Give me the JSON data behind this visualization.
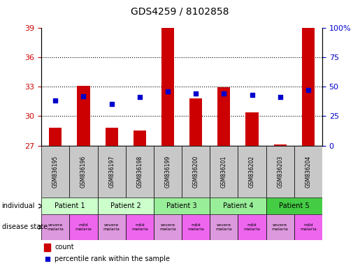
{
  "title": "GDS4259 / 8102858",
  "samples": [
    "GSM836195",
    "GSM836196",
    "GSM836197",
    "GSM836198",
    "GSM836199",
    "GSM836200",
    "GSM836201",
    "GSM836202",
    "GSM836203",
    "GSM836204"
  ],
  "count_values": [
    28.8,
    33.1,
    28.8,
    28.5,
    39.0,
    31.8,
    32.9,
    30.4,
    27.1,
    39.0
  ],
  "percentile_values": [
    38,
    42,
    35,
    41,
    46,
    44,
    44,
    43,
    41,
    47
  ],
  "ylim_left": [
    27,
    39
  ],
  "ylim_right": [
    0,
    100
  ],
  "yticks_left": [
    27,
    30,
    33,
    36,
    39
  ],
  "yticks_right": [
    0,
    25,
    50,
    75,
    100
  ],
  "bar_color": "#cc0000",
  "dot_color": "#0000cc",
  "bar_bottom": 27,
  "patients": [
    {
      "label": "Patient 1",
      "cols": [
        0,
        1
      ],
      "color": "#ccffcc"
    },
    {
      "label": "Patient 2",
      "cols": [
        2,
        3
      ],
      "color": "#ccffcc"
    },
    {
      "label": "Patient 3",
      "cols": [
        4,
        5
      ],
      "color": "#99ee99"
    },
    {
      "label": "Patient 4",
      "cols": [
        6,
        7
      ],
      "color": "#99ee99"
    },
    {
      "label": "Patient 5",
      "cols": [
        8,
        9
      ],
      "color": "#44cc44"
    }
  ],
  "disease_states": [
    {
      "label": "severe\nmalaria",
      "col": 0,
      "color": "#dd99dd"
    },
    {
      "label": "mild\nmalaria",
      "col": 1,
      "color": "#ee66ee"
    },
    {
      "label": "severe\nmalaria",
      "col": 2,
      "color": "#dd99dd"
    },
    {
      "label": "mild\nmalaria",
      "col": 3,
      "color": "#ee66ee"
    },
    {
      "label": "severe\nmalaria",
      "col": 4,
      "color": "#dd99dd"
    },
    {
      "label": "mild\nmalaria",
      "col": 5,
      "color": "#ee66ee"
    },
    {
      "label": "severe\nmalaria",
      "col": 6,
      "color": "#dd99dd"
    },
    {
      "label": "mild\nmalaria",
      "col": 7,
      "color": "#ee66ee"
    },
    {
      "label": "severe\nmalaria",
      "col": 8,
      "color": "#dd99dd"
    },
    {
      "label": "mild\nmalaria",
      "col": 9,
      "color": "#ee66ee"
    }
  ],
  "sample_bg_color": "#c8c8c8",
  "grid_color": "#000000",
  "left_label_color": "#cc0000",
  "right_label_color": "#0000cc",
  "legend_count_color": "#cc0000",
  "legend_dot_color": "#0000cc",
  "gridline_ticks": [
    30,
    33,
    36
  ]
}
